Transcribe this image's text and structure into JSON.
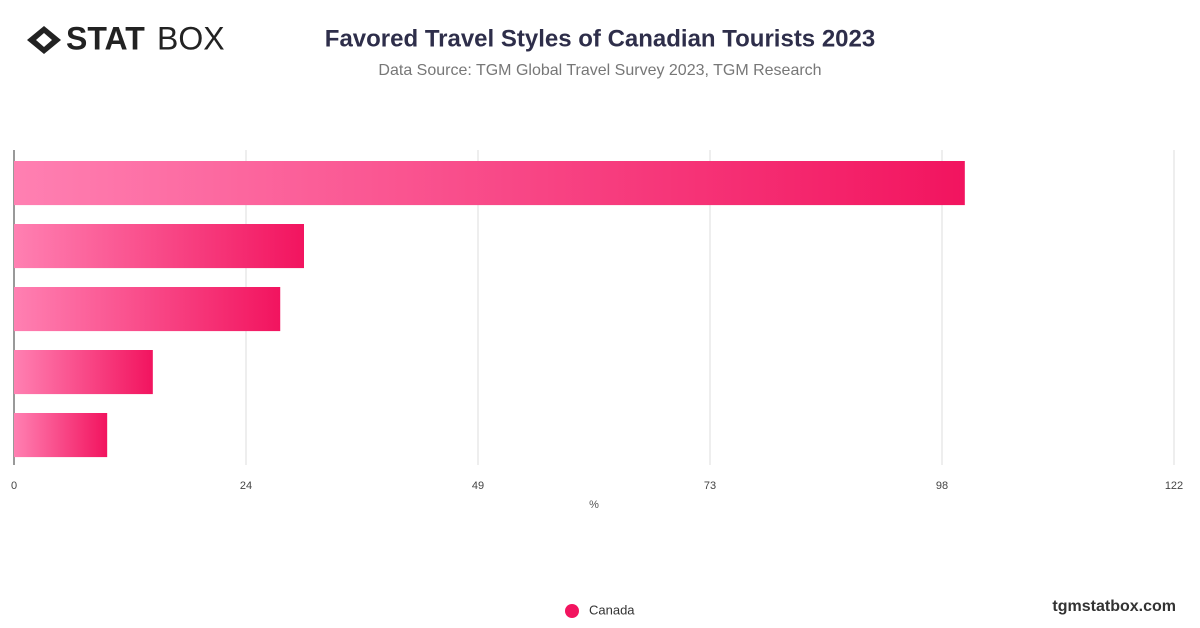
{
  "logo": {
    "bold": "STAT",
    "light": "BOX"
  },
  "footer": "tgmstatbox.com",
  "chart_data": {
    "type": "hbar",
    "title": "Favored Travel Styles of Canadian Tourists 2023",
    "subtitle": "Data Source: TGM Global Travel Survey 2023, TGM Research",
    "x_label": "%",
    "categories": [
      null,
      null,
      null,
      null,
      null
    ],
    "series": [
      {
        "name": "Canada",
        "color": "#f2145f",
        "values": [
          100,
          30.5,
          28,
          14.6,
          9.8
        ]
      }
    ],
    "xlim": [
      0,
      122
    ],
    "xticks": [
      0,
      {
        "value": 24.4,
        "label": "24"
      },
      {
        "value": 48.8,
        "label": "49"
      },
      {
        "value": 73.2,
        "label": "73"
      },
      {
        "value": 97.6,
        "label": "98"
      },
      122
    ],
    "grid": true,
    "legend": "bottom"
  }
}
